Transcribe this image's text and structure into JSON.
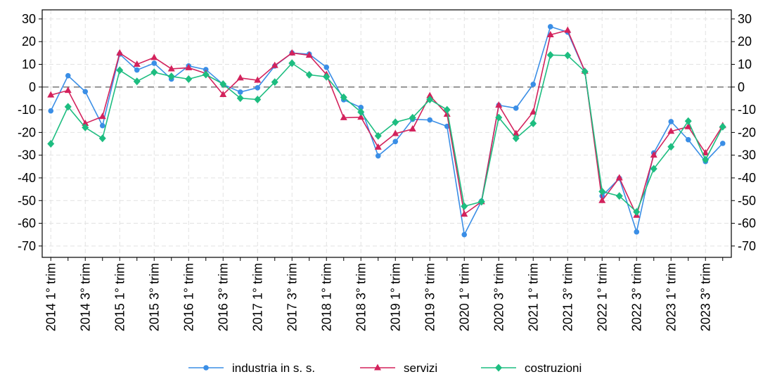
{
  "chart_data": {
    "type": "line",
    "categories": [
      "2014 1° trim",
      null,
      "2014 3° trim",
      null,
      "2015 1° trim",
      null,
      "2015 3° trim",
      null,
      "2016 1° trim",
      null,
      "2016 3° trim",
      null,
      "2017 1° trim",
      null,
      "2017 3° trim",
      null,
      "2018 1° trim",
      null,
      "2018 3° trim",
      null,
      "2019 1° trim",
      null,
      "2019 3° trim",
      null,
      "2020 1° trim",
      null,
      "2020 3° trim",
      null,
      "2021 1° trim",
      null,
      "2021 3° trim",
      null,
      "2022 1° trim",
      null,
      "2022 3° trim",
      null,
      "2023 1° trim",
      null,
      "2023 3° trim",
      null
    ],
    "series": [
      {
        "name": "industria in s. s.",
        "color": "#3a8ee6",
        "marker": "circle",
        "values": [
          -10.5,
          5,
          -2,
          -17,
          14.5,
          7.5,
          10.5,
          3.5,
          9.3,
          7.7,
          1.2,
          -2.2,
          -0.3,
          9.3,
          15,
          14.5,
          8.7,
          -5.6,
          -9,
          -30.3,
          -24,
          -14.2,
          -14.5,
          -17.3,
          -65,
          -50.2,
          -8,
          -9.3,
          1.2,
          26.6,
          24.2,
          6.8,
          -48,
          -40.2,
          -63.8,
          -29,
          -15.2,
          -23.2,
          -32.8,
          -24.8
        ]
      },
      {
        "name": "servizi",
        "color": "#d3225c",
        "marker": "triangle",
        "values": [
          -3.5,
          -1.5,
          -16,
          -13,
          15,
          10,
          13,
          8,
          8.5,
          6,
          -3.3,
          4,
          3,
          9.5,
          15,
          14,
          5.5,
          -13.5,
          -13.3,
          -26.5,
          -20.5,
          -18.5,
          -3.8,
          -12,
          -56,
          -50.5,
          -8,
          -20.5,
          -11,
          23,
          25,
          7,
          -50,
          -40,
          -56.5,
          -30,
          -19.5,
          -17.5,
          -29,
          -17
        ]
      },
      {
        "name": "costruzioni",
        "color": "#1dbd80",
        "marker": "diamond",
        "values": [
          -25,
          -8.7,
          -17.8,
          -22.6,
          7.4,
          2.5,
          6.5,
          4.7,
          3.5,
          5.5,
          1.3,
          -4.9,
          -5.5,
          2.2,
          10.5,
          5.4,
          4.5,
          -4.5,
          -11,
          -21.5,
          -15.5,
          -13.5,
          -5.5,
          -10,
          -52.5,
          -50.5,
          -13.4,
          -22.6,
          -16,
          14.1,
          13.9,
          6.8,
          -46,
          -48,
          -55,
          -36,
          -26.3,
          -15,
          -32,
          -17.5
        ]
      }
    ],
    "ylim": [
      -75,
      34
    ],
    "yticks": [
      30,
      20,
      10,
      0,
      -10,
      -20,
      -30,
      -40,
      -50,
      -60,
      -70
    ],
    "grid": true,
    "legend": "bottom"
  }
}
